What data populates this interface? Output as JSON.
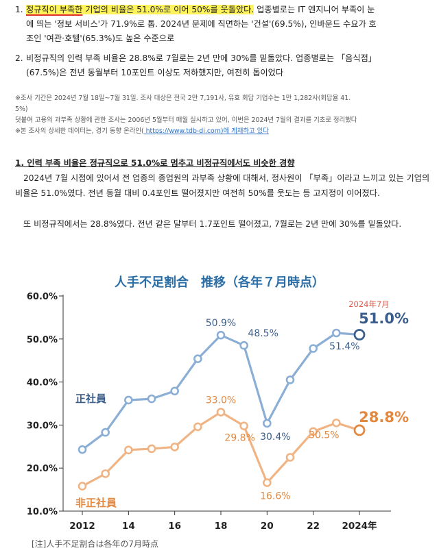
{
  "list": {
    "item1": {
      "number": "1.",
      "highlight_underlined": "정규직이 부족한",
      "highlight_rest": " 기업의 비율은 51.0%로 이어 50%를 웃돌았다.",
      "rest_line1": " 업종별로는 IT 엔지니어 부족이 눈",
      "line2": "에 띄는 '정보 서비스'가 71.9%로 톱. 2024년 문제에 직면하는 '건설'(69.5%), 인바운드 수요가 호",
      "line3": "조인 '여관·호텔'(65.3%)도 높은 수준으로"
    },
    "item2": {
      "number": "2.",
      "line1": "비정규직의 인력 부족 비율은 28.8%로 7월로는 2년 만에 30%를 밑돌았다. 업종별로는 「음식점」",
      "line2": "(67.5%)은 전년 동월부터 10포인트 이상도 저하했지만, 여전히 톱이었다"
    }
  },
  "notes": {
    "line1": "※조사 기간은 2024년 7월 18일~7월 31일. 조사 대상은 전국 2만 7,191사, 유효 회답 기업수는 1만 1,282사(회답율 41.",
    "line2": "5%)",
    "line3": "덧붙여 고용의 과부족 상황에 관한 조사는 2006년 5월부터 매월 실시하고 있어, 이번은 2024년 7월의 결과를 기초로 정리했다",
    "line4_prefix": "※본 조사의 상세한 데이터는, 경기 동향 온라인(",
    "line4_link": " https://www.tdb-di.com)에 게재하고 있다"
  },
  "section": {
    "title": "1. 인력 부족 비율은 정규직으로 51.0%로 멈추고 비정규직에서도 비슷한 경향",
    "para1": "2024년 7월 시점에 있어서 전 업종의 종업원의 과부족 상황에 대해서, 정사원이 「부족」이라고 느끼고 있는 기업의 비율은 51.0%였다. 전년 동월 대비 0.4포인트 떨어졌지만 여전히 50%를 웃도는 등 고지정이 이어졌다.",
    "para2": "또 비정규직에서는 28.8%였다. 전년 같은 달부터 1.7포인트 떨어졌고, 7월로는 2년 만에 30%를 밑돌았다."
  },
  "chart_data": {
    "type": "line",
    "title": "人手不足割合　推移（各年７月時点）",
    "x": [
      2012,
      2013,
      2014,
      2015,
      2016,
      2017,
      2018,
      2019,
      2020,
      2021,
      2022,
      2023,
      2024
    ],
    "x_tick_labels": [
      "2012",
      "14",
      "16",
      "18",
      "20",
      "22",
      "2024年"
    ],
    "ylim": [
      10,
      60
    ],
    "y_tick_labels": [
      "60.0%",
      "50.0%",
      "40.0%",
      "30.0%",
      "20.0%",
      "10.0%"
    ],
    "series": [
      {
        "name": "正社員",
        "color": "#8aaed6",
        "highlight_color": "#3a5e8c",
        "values": [
          24.3,
          28.3,
          35.8,
          36.1,
          37.9,
          45.4,
          50.9,
          48.5,
          30.4,
          40.5,
          47.8,
          51.4,
          51.0
        ],
        "labels": [
          {
            "index": 6,
            "text": "50.9%"
          },
          {
            "index": 7,
            "text": "48.5%"
          },
          {
            "index": 8,
            "text": "30.4%"
          },
          {
            "index": 11,
            "text": "51.4%"
          }
        ],
        "latest_label": "51.0%",
        "latest_note": "2024年7月"
      },
      {
        "name": "非正社員",
        "color": "#f0b484",
        "highlight_color": "#e3883f",
        "values": [
          15.8,
          18.7,
          24.2,
          24.5,
          24.9,
          29.6,
          33.0,
          29.8,
          16.6,
          22.5,
          28.5,
          30.5,
          28.8
        ],
        "labels": [
          {
            "index": 6,
            "text": "33.0%"
          },
          {
            "index": 7,
            "text": "29.8%"
          },
          {
            "index": 8,
            "text": "16.6%"
          },
          {
            "index": 11,
            "text": "30.5%"
          }
        ],
        "latest_label": "28.8%"
      }
    ],
    "footnote": "[注]人手不足割合は各年の7月時点"
  }
}
